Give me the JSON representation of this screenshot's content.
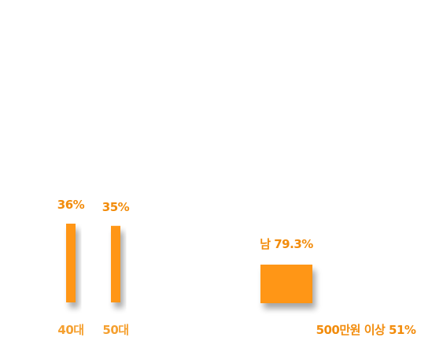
{
  "chart_data": [
    {
      "type": "bar",
      "categories": [
        "40대",
        "50대"
      ],
      "values": [
        36,
        35
      ],
      "data_labels": [
        "36%",
        "35%"
      ],
      "value_unit": "%",
      "title": "",
      "xlabel": "",
      "ylabel": ""
    },
    {
      "type": "bar",
      "categories": [
        "남"
      ],
      "values": [
        79.3
      ],
      "data_labels": [
        "남 79.3%"
      ],
      "value_unit": "%"
    },
    {
      "type": "bar",
      "categories": [
        "500만원 이상"
      ],
      "values": [
        51
      ],
      "data_labels": [
        "500만원 이상 51%"
      ],
      "value_unit": "%"
    }
  ],
  "colors": {
    "bar": "#ff9614",
    "value_label": "#f28c0c",
    "category_label": "#f5a030",
    "shadow": "#000000"
  }
}
